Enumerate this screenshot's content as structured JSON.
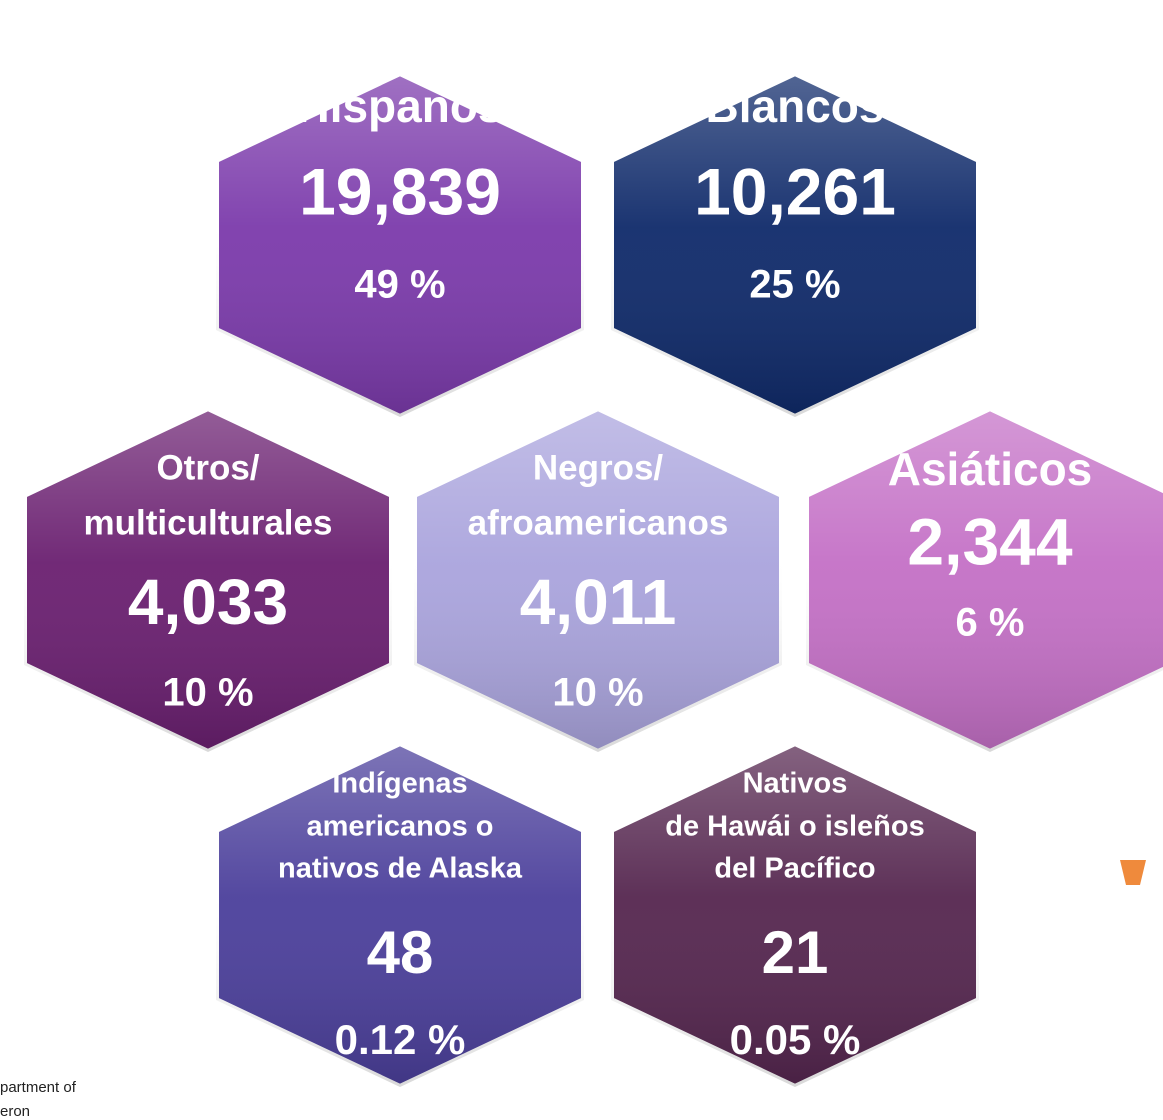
{
  "hexagons": [
    {
      "lines": [
        "Hispanos"
      ],
      "count": "19,839",
      "percent": "49 %",
      "color": "#7b3aab"
    },
    {
      "lines": [
        "Blancos"
      ],
      "count": "10,261",
      "percent": "25 %",
      "color": "#0f2a6a"
    },
    {
      "lines": [
        "Otros/",
        "multiculturales"
      ],
      "count": "4,033",
      "percent": "10 %",
      "color": "#6a1f70"
    },
    {
      "lines": [
        "Negros/",
        "afroamericanos"
      ],
      "count": "4,011",
      "percent": "10 %",
      "color": "#aaa4dd"
    },
    {
      "lines": [
        "Asiáticos"
      ],
      "count": "2,344",
      "percent": "6 %",
      "color": "#c470c6"
    },
    {
      "lines": [
        "Indígenas",
        "americanos o",
        "nativos de Alaska"
      ],
      "count": "48",
      "percent": "0.12 %",
      "color": "#4b3f9b"
    },
    {
      "lines": [
        "Nativos",
        "de Hawái o isleños",
        "del Pacífico"
      ],
      "count": "21",
      "percent": "0.05 %",
      "color": "#55264f"
    }
  ],
  "footnote": [
    "partment of",
    "eron"
  ]
}
